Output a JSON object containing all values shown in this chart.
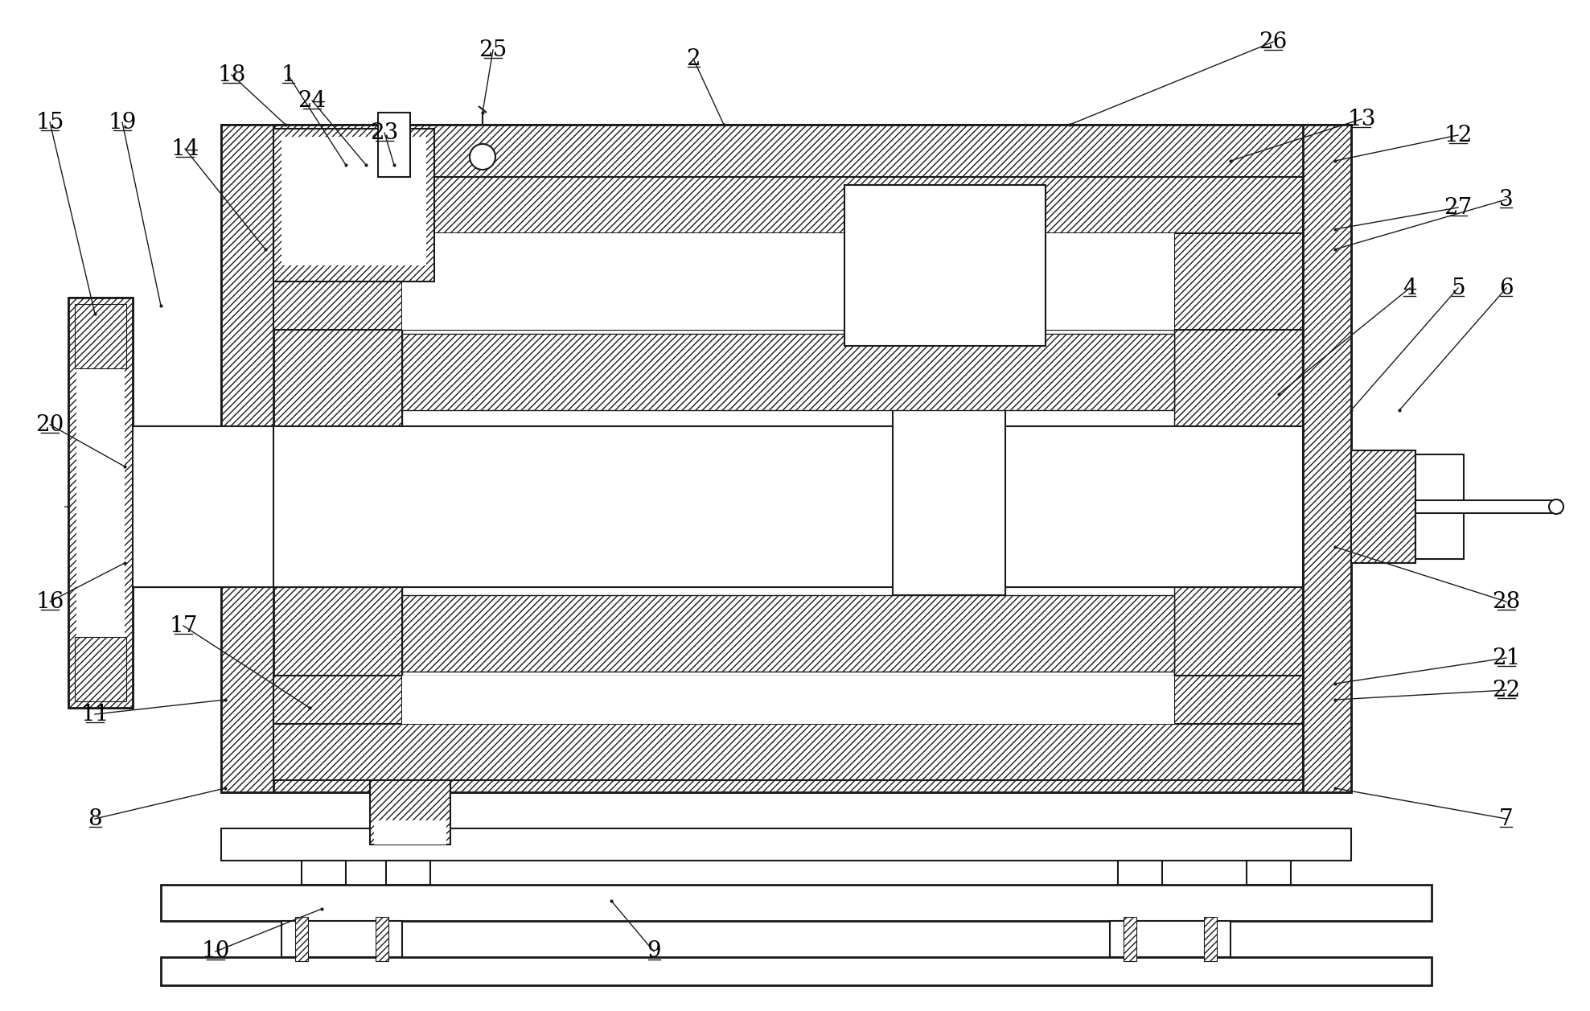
{
  "bg_color": "#ffffff",
  "lc": "#1a1a1a",
  "lw_main": 1.5,
  "lw_thick": 2.0,
  "lw_thin": 1.0,
  "label_fontsize": 20,
  "leaders": [
    [
      "1",
      358,
      93,
      430,
      205
    ],
    [
      "2",
      862,
      73,
      900,
      155
    ],
    [
      "18",
      288,
      93,
      355,
      155
    ],
    [
      "14",
      230,
      185,
      330,
      310
    ],
    [
      "24",
      388,
      125,
      455,
      205
    ],
    [
      "23",
      478,
      165,
      490,
      205
    ],
    [
      "25",
      613,
      62,
      600,
      140
    ],
    [
      "26",
      1583,
      52,
      1330,
      155
    ],
    [
      "13",
      1693,
      148,
      1530,
      200
    ],
    [
      "12",
      1813,
      168,
      1660,
      200
    ],
    [
      "27",
      1813,
      258,
      1660,
      285
    ],
    [
      "3",
      1873,
      248,
      1660,
      310
    ],
    [
      "4",
      1753,
      358,
      1590,
      490
    ],
    [
      "5",
      1813,
      358,
      1680,
      510
    ],
    [
      "6",
      1873,
      358,
      1740,
      510
    ],
    [
      "28",
      1873,
      748,
      1660,
      680
    ],
    [
      "21",
      1873,
      818,
      1660,
      850
    ],
    [
      "22",
      1873,
      858,
      1660,
      870
    ],
    [
      "7",
      1873,
      1018,
      1660,
      980
    ],
    [
      "8",
      118,
      1018,
      280,
      980
    ],
    [
      "11",
      118,
      888,
      280,
      870
    ],
    [
      "16",
      62,
      748,
      155,
      700
    ],
    [
      "20",
      62,
      528,
      155,
      580
    ],
    [
      "15",
      62,
      152,
      118,
      390
    ],
    [
      "19",
      152,
      152,
      200,
      380
    ],
    [
      "17",
      228,
      778,
      385,
      880
    ],
    [
      "9",
      813,
      1183,
      760,
      1120
    ],
    [
      "10",
      268,
      1183,
      400,
      1130
    ]
  ]
}
